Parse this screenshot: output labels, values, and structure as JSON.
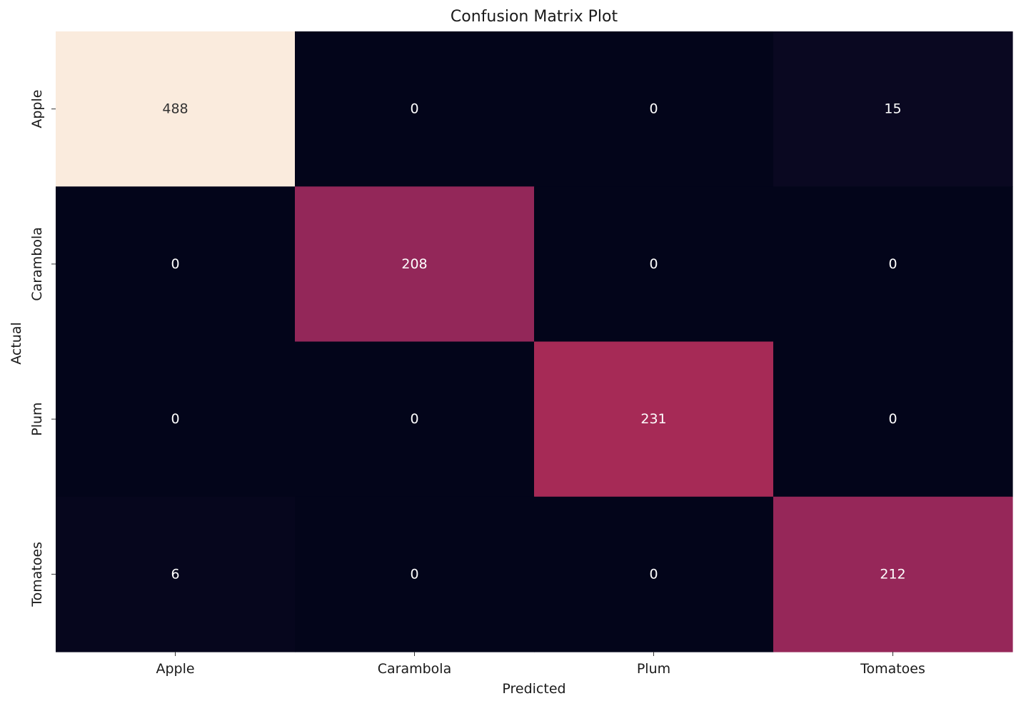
{
  "chart_data": {
    "type": "heatmap",
    "title": "Confusion Matrix Plot",
    "xlabel": "Predicted",
    "ylabel": "Actual",
    "x_categories": [
      "Apple",
      "Carambola",
      "Plum",
      "Tomatoes"
    ],
    "y_categories": [
      "Apple",
      "Carambola",
      "Plum",
      "Tomatoes"
    ],
    "values": [
      [
        488,
        0,
        0,
        15
      ],
      [
        0,
        208,
        0,
        0
      ],
      [
        0,
        0,
        231,
        0
      ],
      [
        6,
        0,
        0,
        212
      ]
    ],
    "colorbar": false,
    "colormap": "rocket",
    "colors": {
      "low": "#03051a",
      "high": "#faebdd"
    }
  }
}
